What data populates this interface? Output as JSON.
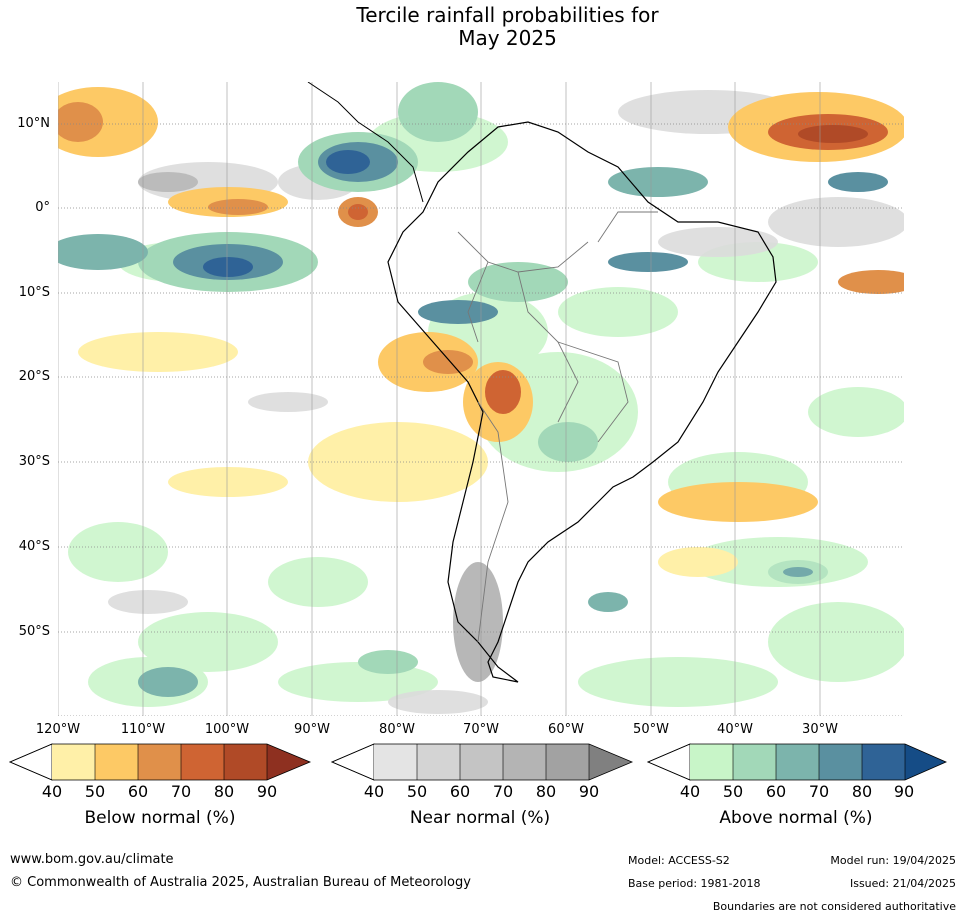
{
  "title_line1": "Tercile rainfall probabilities for",
  "title_line2": "May 2025",
  "lat_labels": [
    "10°N",
    "0°",
    "10°S",
    "20°S",
    "30°S",
    "40°S",
    "50°S"
  ],
  "lon_labels": [
    "120°W",
    "110°W",
    "100°W",
    "90°W",
    "80°W",
    "70°W",
    "60°W",
    "50°W",
    "40°W",
    "30°W"
  ],
  "colorbars": [
    {
      "title": "Below normal (%)",
      "ticks": [
        "40",
        "50",
        "60",
        "70",
        "80",
        "90"
      ],
      "colors": [
        "#fff0a8",
        "#fdc965",
        "#e0904a",
        "#cf6433",
        "#b04a27",
        "#8e3020"
      ]
    },
    {
      "title": "Near normal (%)",
      "ticks": [
        "40",
        "50",
        "60",
        "70",
        "80",
        "90"
      ],
      "colors": [
        "#e4e4e4",
        "#d4d4d4",
        "#c4c4c4",
        "#b4b4b4",
        "#a2a2a2",
        "#808080"
      ]
    },
    {
      "title": "Above normal (%)",
      "ticks": [
        "40",
        "50",
        "60",
        "70",
        "80",
        "90"
      ],
      "colors": [
        "#c8f5c8",
        "#a2d8b8",
        "#7cb4ac",
        "#5a90a0",
        "#2f6396",
        "#154c86"
      ]
    }
  ],
  "footer": {
    "website": "www.bom.gov.au/climate",
    "copyright": "© Commonwealth of Australia 2025, Australian Bureau of Meteorology",
    "model": "Model: ACCESS-S2",
    "base_period": "Base period: 1981-2018",
    "model_run": "Model run: 19/04/2025",
    "issued": "Issued: 21/04/2025",
    "disclaimer": "Boundaries are not considered authoritative"
  }
}
